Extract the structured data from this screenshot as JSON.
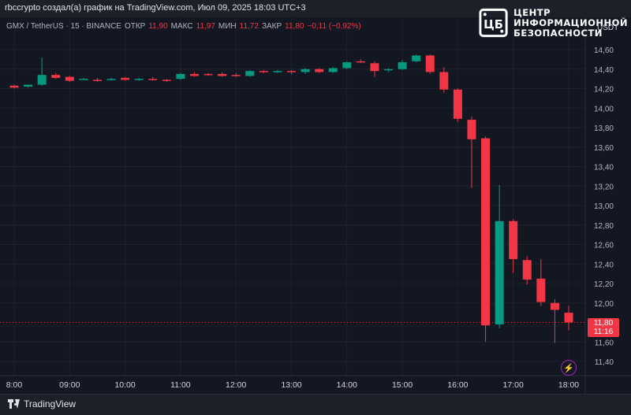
{
  "header": {
    "attribution": "rbccrypto создал(а) график на TradingView.com, Июл 09, 2025 18:03 UTC+3"
  },
  "legend": {
    "symbol": "GMX / TetherUS · 15 · BINANCE",
    "open_label": "ОТКР",
    "open_value": "11,90",
    "high_label": "МАКС",
    "high_value": "11,97",
    "low_label": "МИН",
    "low_value": "11,72",
    "close_label": "ЗАКР",
    "close_value": "11,80",
    "change_value": "−0,11 (−0,92%)"
  },
  "watermark": {
    "logo_icon": "cib-logo-icon",
    "line1": "ЦЕНТР",
    "line2": "ИНФОРМАЦИОННОЙ",
    "line3": "БЕЗОПАСНОСТИ"
  },
  "currency_label": "USDT",
  "price_badge": {
    "price": "11,80",
    "countdown": "11:16"
  },
  "footer": {
    "brand": "TradingView"
  },
  "colors": {
    "up": "#089981",
    "down": "#f23645",
    "background": "#131722",
    "grid": "#1e222d"
  },
  "chart_data": {
    "type": "candlestick",
    "ylim": [
      11.3,
      14.75
    ],
    "y_ticks": [
      14.6,
      14.4,
      14.2,
      14.0,
      13.8,
      13.6,
      13.4,
      13.2,
      13.0,
      12.8,
      12.6,
      12.4,
      12.2,
      12.0,
      11.6,
      11.4
    ],
    "y_tick_labels": [
      "14,60",
      "14,40",
      "14,20",
      "14,00",
      "13,80",
      "13,60",
      "13,40",
      "13,20",
      "13,00",
      "12,80",
      "12,60",
      "12,40",
      "12,20",
      "12,00",
      "11,60",
      "11,40"
    ],
    "x_labels": [
      "8:00",
      "09:00",
      "10:00",
      "11:00",
      "12:00",
      "13:00",
      "14:00",
      "15:00",
      "16:00",
      "17:00",
      "18:00"
    ],
    "x_label_times": [
      8.0,
      9.0,
      10.0,
      11.0,
      12.0,
      13.0,
      14.0,
      15.0,
      16.0,
      17.0,
      18.0
    ],
    "last_price": 11.8,
    "candles": [
      {
        "t": 8.0,
        "o": 14.23,
        "h": 14.24,
        "l": 14.2,
        "c": 14.21
      },
      {
        "t": 8.25,
        "o": 14.22,
        "h": 14.24,
        "l": 14.21,
        "c": 14.24
      },
      {
        "t": 8.5,
        "o": 14.24,
        "h": 14.52,
        "l": 14.23,
        "c": 14.34
      },
      {
        "t": 8.75,
        "o": 14.34,
        "h": 14.36,
        "l": 14.3,
        "c": 14.31
      },
      {
        "t": 9.0,
        "o": 14.32,
        "h": 14.33,
        "l": 14.27,
        "c": 14.28
      },
      {
        "t": 9.25,
        "o": 14.3,
        "h": 14.31,
        "l": 14.29,
        "c": 14.3
      },
      {
        "t": 9.5,
        "o": 14.29,
        "h": 14.31,
        "l": 14.27,
        "c": 14.28
      },
      {
        "t": 9.75,
        "o": 14.29,
        "h": 14.31,
        "l": 14.28,
        "c": 14.3
      },
      {
        "t": 10.0,
        "o": 14.31,
        "h": 14.32,
        "l": 14.28,
        "c": 14.29
      },
      {
        "t": 10.25,
        "o": 14.29,
        "h": 14.31,
        "l": 14.28,
        "c": 14.3
      },
      {
        "t": 10.5,
        "o": 14.3,
        "h": 14.32,
        "l": 14.28,
        "c": 14.29
      },
      {
        "t": 10.75,
        "o": 14.29,
        "h": 14.3,
        "l": 14.27,
        "c": 14.28
      },
      {
        "t": 11.0,
        "o": 14.3,
        "h": 14.36,
        "l": 14.29,
        "c": 14.35
      },
      {
        "t": 11.25,
        "o": 14.35,
        "h": 14.37,
        "l": 14.32,
        "c": 14.33
      },
      {
        "t": 11.5,
        "o": 14.35,
        "h": 14.36,
        "l": 14.33,
        "c": 14.34
      },
      {
        "t": 11.75,
        "o": 14.35,
        "h": 14.37,
        "l": 14.32,
        "c": 14.33
      },
      {
        "t": 12.0,
        "o": 14.34,
        "h": 14.36,
        "l": 14.32,
        "c": 14.33
      },
      {
        "t": 12.25,
        "o": 14.33,
        "h": 14.39,
        "l": 14.32,
        "c": 14.38
      },
      {
        "t": 12.5,
        "o": 14.38,
        "h": 14.39,
        "l": 14.36,
        "c": 14.37
      },
      {
        "t": 12.75,
        "o": 14.37,
        "h": 14.39,
        "l": 14.36,
        "c": 14.38
      },
      {
        "t": 13.0,
        "o": 14.38,
        "h": 14.39,
        "l": 14.35,
        "c": 14.37
      },
      {
        "t": 13.25,
        "o": 14.37,
        "h": 14.41,
        "l": 14.35,
        "c": 14.4
      },
      {
        "t": 13.5,
        "o": 14.4,
        "h": 14.41,
        "l": 14.36,
        "c": 14.37
      },
      {
        "t": 13.75,
        "o": 14.37,
        "h": 14.42,
        "l": 14.36,
        "c": 14.41
      },
      {
        "t": 14.0,
        "o": 14.41,
        "h": 14.48,
        "l": 14.4,
        "c": 14.47
      },
      {
        "t": 14.25,
        "o": 14.48,
        "h": 14.5,
        "l": 14.46,
        "c": 14.47
      },
      {
        "t": 14.5,
        "o": 14.46,
        "h": 14.48,
        "l": 14.32,
        "c": 14.38
      },
      {
        "t": 14.75,
        "o": 14.39,
        "h": 14.41,
        "l": 14.37,
        "c": 14.4
      },
      {
        "t": 15.0,
        "o": 14.4,
        "h": 14.49,
        "l": 14.39,
        "c": 14.47
      },
      {
        "t": 15.25,
        "o": 14.48,
        "h": 14.55,
        "l": 14.47,
        "c": 14.54
      },
      {
        "t": 15.5,
        "o": 14.54,
        "h": 14.55,
        "l": 14.35,
        "c": 14.37
      },
      {
        "t": 15.75,
        "o": 14.37,
        "h": 14.42,
        "l": 14.16,
        "c": 14.19
      },
      {
        "t": 16.0,
        "o": 14.19,
        "h": 14.2,
        "l": 13.86,
        "c": 13.89
      },
      {
        "t": 16.25,
        "o": 13.88,
        "h": 13.91,
        "l": 13.18,
        "c": 13.68
      },
      {
        "t": 16.5,
        "o": 13.69,
        "h": 13.71,
        "l": 11.6,
        "c": 11.77
      },
      {
        "t": 16.75,
        "o": 11.78,
        "h": 13.21,
        "l": 11.74,
        "c": 12.84
      },
      {
        "t": 17.0,
        "o": 12.84,
        "h": 12.86,
        "l": 12.31,
        "c": 12.45
      },
      {
        "t": 17.25,
        "o": 12.44,
        "h": 12.48,
        "l": 12.19,
        "c": 12.24
      },
      {
        "t": 17.5,
        "o": 12.25,
        "h": 12.45,
        "l": 11.97,
        "c": 12.01
      },
      {
        "t": 17.75,
        "o": 12.0,
        "h": 12.04,
        "l": 11.59,
        "c": 11.93
      },
      {
        "t": 18.0,
        "o": 11.9,
        "h": 11.97,
        "l": 11.72,
        "c": 11.8
      }
    ]
  }
}
